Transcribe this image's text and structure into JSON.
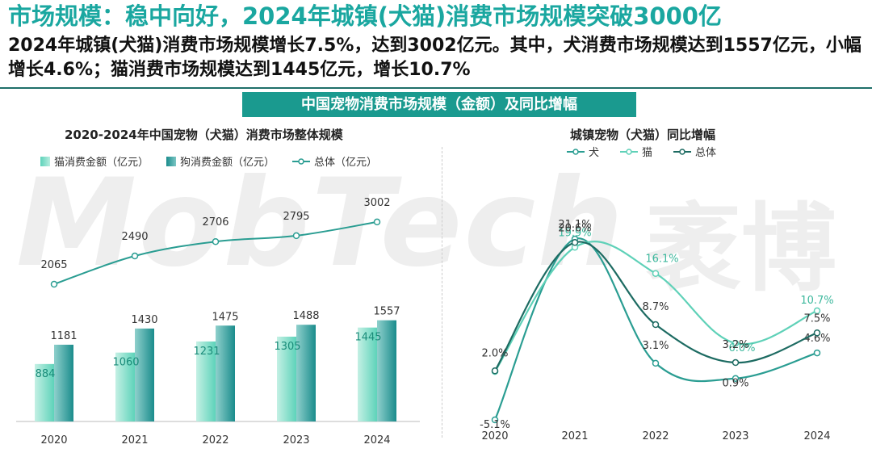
{
  "headline": "市场规模：稳中向好，2024年城镇(犬猫)消费市场规模突破3000亿",
  "summary": "2024年城镇(犬猫)消费市场规模增长7.5%，达到3002亿元。其中，犬消费市场规模达到1557亿元，小幅增长4.6%；猫消费市场规模达到1445亿元，增长10.7%",
  "banner": "中国宠物消费市场规模（金额）及同比增幅",
  "watermark": "MobTech",
  "watermark_cn": "袤博",
  "colors": {
    "cat": "#5ed3ba",
    "dog": "#1a8c8c",
    "total_line": "#2a9d92",
    "growth_dog": "#2a9d92",
    "growth_cat": "#5fd1b8",
    "growth_total": "#1d6b62",
    "banner": "#1a9a8f",
    "headline": "#1aa7a0"
  },
  "chart_data": [
    {
      "type": "bar",
      "title": "2020-2024年中国宠物（犬猫）消费市场整体规模",
      "categories": [
        "2020",
        "2021",
        "2022",
        "2023",
        "2024"
      ],
      "series": [
        {
          "name": "猫消费金额（亿元）",
          "type": "bar",
          "values": [
            884,
            1060,
            1231,
            1305,
            1445
          ]
        },
        {
          "name": "狗消费金额（亿元）",
          "type": "bar",
          "values": [
            1181,
            1430,
            1475,
            1488,
            1557
          ]
        },
        {
          "name": "总体（亿元）",
          "type": "line",
          "values": [
            2065,
            2490,
            2706,
            2795,
            3002
          ]
        }
      ],
      "legend_position": "top-left",
      "grid": false
    },
    {
      "type": "line",
      "title": "城镇宠物（犬猫）同比增幅",
      "categories": [
        "2020",
        "2021",
        "2022",
        "2023",
        "2024"
      ],
      "series": [
        {
          "name": "犬",
          "values": [
            -5.1,
            21.1,
            3.1,
            0.9,
            4.6
          ],
          "labels": [
            "-5.1%",
            "21.1%",
            "3.1%",
            "0.9%",
            "4.6%"
          ]
        },
        {
          "name": "猫",
          "values": [
            1.9,
            19.9,
            16.1,
            6.0,
            10.7
          ],
          "labels": [
            "",
            "19.9%",
            "16.1%",
            "6.0%",
            "10.7%"
          ]
        },
        {
          "name": "总体",
          "values": [
            2.0,
            20.6,
            8.7,
            3.2,
            7.5
          ],
          "labels": [
            "2.0%",
            "20.6%",
            "8.7%",
            "3.2%",
            "7.5%"
          ]
        }
      ],
      "ylim": [
        -6,
        23
      ],
      "legend_position": "top-left",
      "grid": false
    }
  ]
}
